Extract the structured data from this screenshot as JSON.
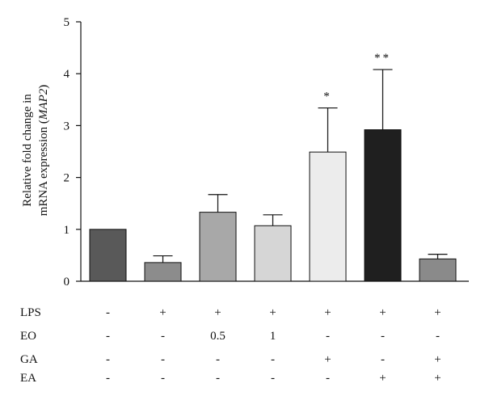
{
  "chart_data": {
    "type": "bar",
    "title": "",
    "xlabel": "",
    "ylabel_lines": [
      "Relative fold change in",
      "mRNA expression ("
    ],
    "ylabel_gene": "MAP2",
    "ylabel_close": ")",
    "ylim": [
      0,
      5
    ],
    "yticks": [
      "0",
      "1",
      "2",
      "3",
      "4",
      "5"
    ],
    "grid": false,
    "bars": [
      {
        "value": 1.0,
        "error": 0.0,
        "fill": "#595959",
        "significance": ""
      },
      {
        "value": 0.36,
        "error": 0.13,
        "fill": "#8c8c8c",
        "significance": ""
      },
      {
        "value": 1.33,
        "error": 0.34,
        "fill": "#a8a8a8",
        "significance": ""
      },
      {
        "value": 1.07,
        "error": 0.21,
        "fill": "#d6d6d6",
        "significance": ""
      },
      {
        "value": 2.49,
        "error": 0.85,
        "fill": "#ececec",
        "significance": "*"
      },
      {
        "value": 2.92,
        "error": 1.16,
        "fill": "#1f1f1f",
        "significance": "**"
      },
      {
        "value": 0.43,
        "error": 0.09,
        "fill": "#8a8a8a",
        "significance": ""
      }
    ],
    "treatment_table": [
      {
        "factor": "LPS",
        "values": [
          "-",
          "+",
          "+",
          "+",
          "+",
          "+",
          "+"
        ]
      },
      {
        "factor": "EO",
        "values": [
          "-",
          "-",
          "0.5",
          "1",
          "-",
          "-",
          "-"
        ]
      },
      {
        "factor": "GA",
        "values": [
          "-",
          "-",
          "-",
          "-",
          "+",
          "-",
          "+"
        ]
      },
      {
        "factor": "EA",
        "values": [
          "-",
          "-",
          "-",
          "-",
          "-",
          "+",
          "+"
        ]
      }
    ]
  }
}
